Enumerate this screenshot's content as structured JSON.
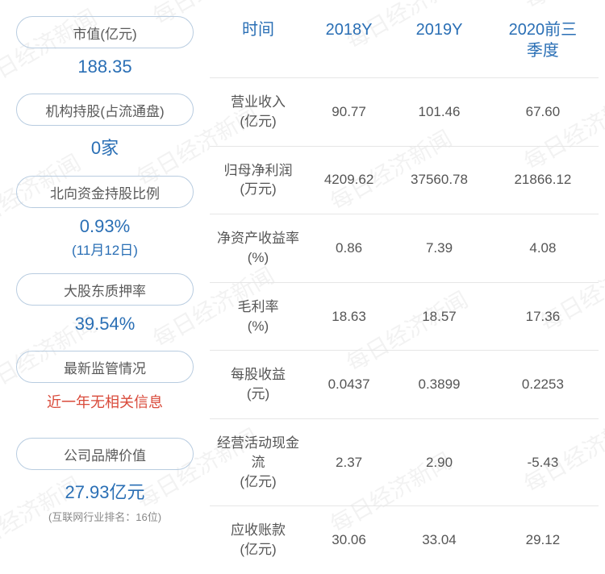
{
  "watermark_text": "每日经济新闻",
  "left": {
    "items": [
      {
        "label": "市值(亿元)",
        "value": "188.35",
        "sub": null,
        "value_color": "#2a6fb5",
        "note": null
      },
      {
        "label": "机构持股(占流通盘)",
        "value": "0家",
        "sub": null,
        "value_color": "#2a6fb5",
        "note": null
      },
      {
        "label": "北向资金持股比例",
        "value": "0.93%",
        "sub": "(11月12日)",
        "value_color": "#2a6fb5",
        "note": null
      },
      {
        "label": "大股东质押率",
        "value": "39.54%",
        "sub": null,
        "value_color": "#2a6fb5",
        "note": null
      },
      {
        "label": "最新监管情况",
        "value": "近一年无相关信息",
        "sub": null,
        "value_color": "#d94a3a",
        "note": null
      },
      {
        "label": "公司品牌价值",
        "value": "27.93亿元",
        "sub": null,
        "value_color": "#2a6fb5",
        "note": "(互联网行业排名：16位)"
      }
    ]
  },
  "table": {
    "columns": [
      "时间",
      "2018Y",
      "2019Y",
      "2020前三季度"
    ],
    "rows": [
      {
        "label": "营业收入",
        "unit": "(亿元)",
        "cells": [
          "90.77",
          "101.46",
          "67.60"
        ]
      },
      {
        "label": "归母净利润",
        "unit": "(万元)",
        "cells": [
          "4209.62",
          "37560.78",
          "21866.12"
        ]
      },
      {
        "label": "净资产收益率",
        "unit": "(%)",
        "cells": [
          "0.86",
          "7.39",
          "4.08"
        ]
      },
      {
        "label": "毛利率",
        "unit": "(%)",
        "cells": [
          "18.63",
          "18.57",
          "17.36"
        ]
      },
      {
        "label": "每股收益",
        "unit": "(元)",
        "cells": [
          "0.0437",
          "0.3899",
          "0.2253"
        ]
      },
      {
        "label": "经营活动现金流",
        "unit": "(亿元)",
        "cells": [
          "2.37",
          "2.90",
          "-5.43"
        ]
      },
      {
        "label": "应收账款",
        "unit": "(亿元)",
        "cells": [
          "30.06",
          "33.04",
          "29.12"
        ]
      }
    ],
    "header_color": "#2a6fb5",
    "cell_color": "#555555",
    "border_color": "#e6e6e6",
    "pill_border_color": "#b8cce0"
  }
}
